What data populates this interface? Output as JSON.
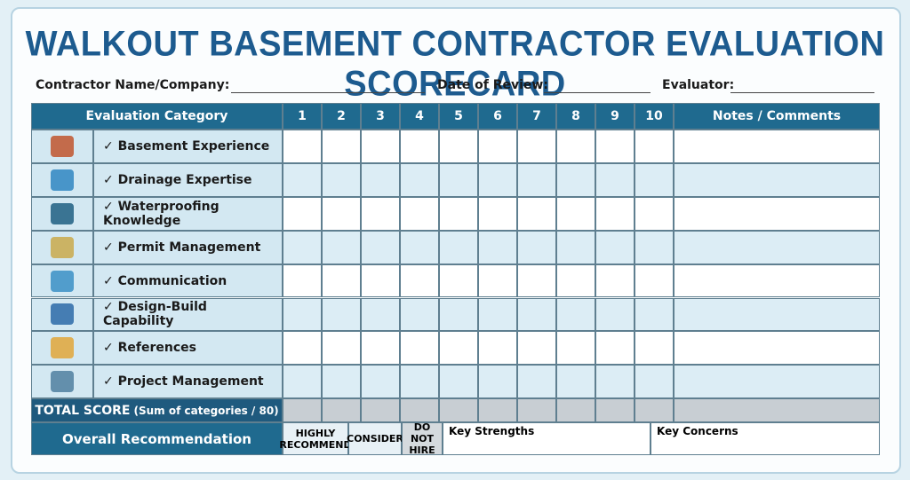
{
  "header": {
    "title": "WALKOUT BASEMENT CONTRACTOR EVALUATION SCORECARD",
    "fields": [
      "Contractor Name/Company:",
      "Date of Review:",
      "Evaluator:"
    ]
  },
  "table": {
    "columns": [
      "Evaluation Category",
      "1",
      "2",
      "3",
      "4",
      "5",
      "6",
      "7",
      "8",
      "9",
      "10",
      "Notes / Comments"
    ],
    "rows": [
      "✓ Basement Experience",
      "✓ Drainage Expertise",
      "✓ Waterproofing Knowledge",
      "✓ Permit Management",
      "✓ Communication",
      "✓ Design-Build Capability",
      "✓ References",
      "✓ Project Management"
    ],
    "total": {
      "label": "TOTAL SCORE",
      "note": "(Sum of categories / 80)"
    },
    "recommendation": {
      "label": "Overall Recommendation",
      "options": [
        "HIGHLY RECOMMEND",
        "CONSIDER",
        "DO NOT HIRE"
      ],
      "strengths": "Key Strengths",
      "concerns": "Key Concerns"
    }
  }
}
